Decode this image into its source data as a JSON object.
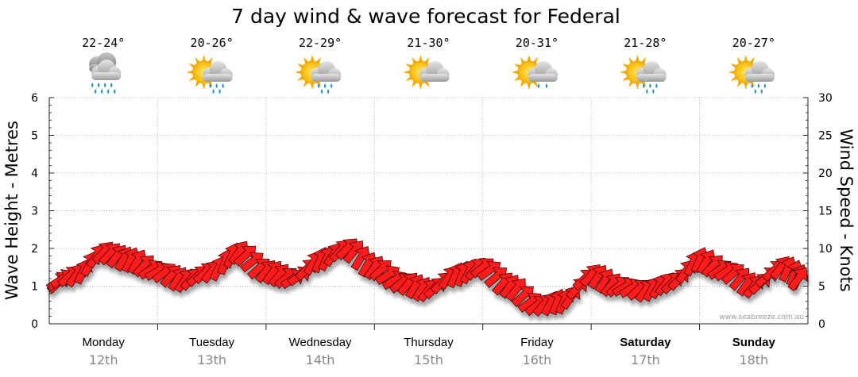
{
  "chart_data": {
    "type": "line",
    "title": "7 day wind & wave forecast for Federal",
    "ylabel_left": "Wave Height - Metres",
    "ylabel_right": "Wind Speed - Knots",
    "ylim_left": [
      0,
      6
    ],
    "ylim_right": [
      0,
      30
    ],
    "yticks_left": [
      "0",
      "1",
      "2",
      "3",
      "4",
      "5",
      "6"
    ],
    "yticks_right": [
      "0",
      "5",
      "10",
      "15",
      "20",
      "25",
      "30"
    ],
    "days": [
      {
        "name": "Monday",
        "date": "12th",
        "temp": "22-24°",
        "weather": "showers",
        "bold": false
      },
      {
        "name": "Tuesday",
        "date": "13th",
        "temp": "20-26°",
        "weather": "sun-showers",
        "bold": false
      },
      {
        "name": "Wednesday",
        "date": "14th",
        "temp": "22-29°",
        "weather": "sun-showers",
        "bold": false
      },
      {
        "name": "Thursday",
        "date": "15th",
        "temp": "21-30°",
        "weather": "partly-cloudy",
        "bold": false
      },
      {
        "name": "Friday",
        "date": "16th",
        "temp": "20-31°",
        "weather": "sun-shower",
        "bold": false
      },
      {
        "name": "Saturday",
        "date": "17th",
        "temp": "21-28°",
        "weather": "sun-showers",
        "bold": true
      },
      {
        "name": "Sunday",
        "date": "18th",
        "temp": "20-27°",
        "weather": "sun-showers",
        "bold": true
      }
    ],
    "series": [
      {
        "name": "Wind speed (knots)",
        "color": "#ff1a1a",
        "x_hours": [
          0,
          6,
          12,
          18,
          24,
          30,
          36,
          42,
          48,
          54,
          60,
          66,
          72,
          78,
          84,
          90,
          96,
          102,
          108,
          114,
          120,
          126,
          132,
          138,
          144,
          150,
          156,
          162,
          168
        ],
        "values": [
          5.5,
          6.5,
          9.5,
          8.5,
          7.0,
          5.8,
          7.0,
          9.5,
          7.0,
          6.0,
          8.5,
          10.0,
          7.5,
          5.5,
          4.5,
          6.5,
          7.5,
          5.0,
          2.5,
          3.0,
          6.5,
          5.0,
          4.5,
          5.5,
          8.5,
          7.0,
          5.0,
          7.5,
          6.0
        ]
      }
    ],
    "watermark": "www.seabreeze.com.au"
  },
  "colors": {
    "arrow_fill": "#ff1a1a",
    "grid": "#bbbbbb",
    "date_text": "#888888"
  }
}
